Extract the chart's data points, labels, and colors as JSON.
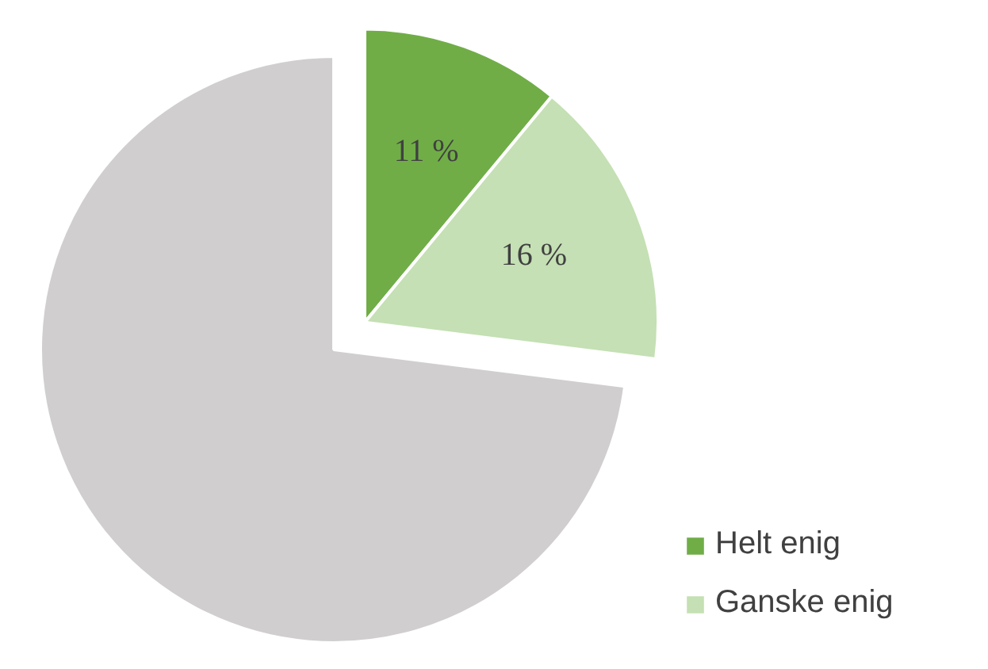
{
  "chart_data": {
    "type": "pie",
    "categories": [
      "Helt enig",
      "Ganske enig",
      null
    ],
    "values": [
      11,
      16,
      73
    ],
    "colors": [
      "#70ad47",
      "#c5e0b4",
      "#d0cece"
    ],
    "value_labels": [
      "11 %",
      "16 %",
      null
    ],
    "legend": "bottom right"
  }
}
